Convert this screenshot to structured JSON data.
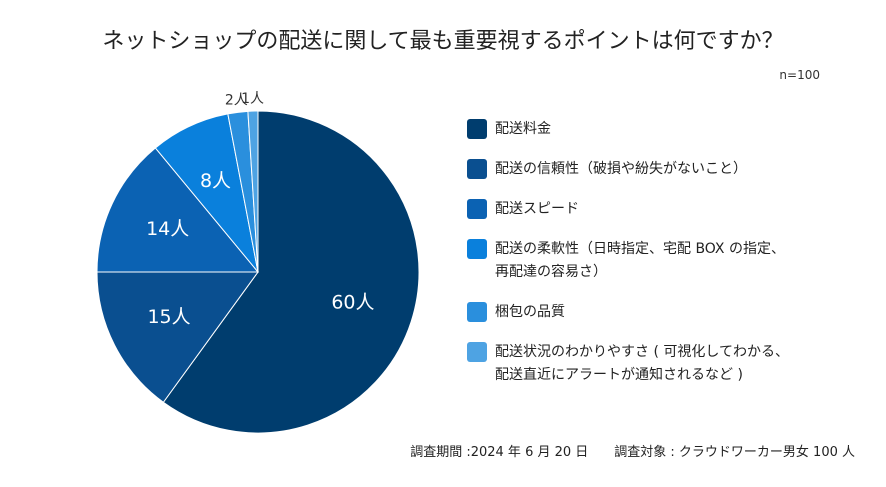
{
  "chart_data": {
    "type": "pie",
    "title": "ネットショップの配送に関して最も重要視するポイントは何ですか？",
    "subtitle": "n=100",
    "categories": [
      "配送料金",
      "配送の信頼性（破損や紛失がないこと）",
      "配送スピード",
      "配送の柔軟性（日時指定、宅配 BOX の指定、\n再配達の容易さ）",
      "梱包の品質",
      "配送状況のわかりやすさ ( 可視化してわかる、\n配送直近にアラートが通知されるなど )"
    ],
    "values": [
      60,
      15,
      14,
      8,
      2,
      1
    ],
    "value_labels": [
      "60人",
      "15人",
      "14人",
      "8人",
      "2人",
      "1人"
    ],
    "colors": [
      "#003d6e",
      "#0a4f90",
      "#0b62b3",
      "#0a80dc",
      "#2a8fdd",
      "#4ea3e3"
    ],
    "note": "調査期間 :2024 年 6 月 20 日　　調査対象 : クラウドワーカー男女 100 人"
  }
}
